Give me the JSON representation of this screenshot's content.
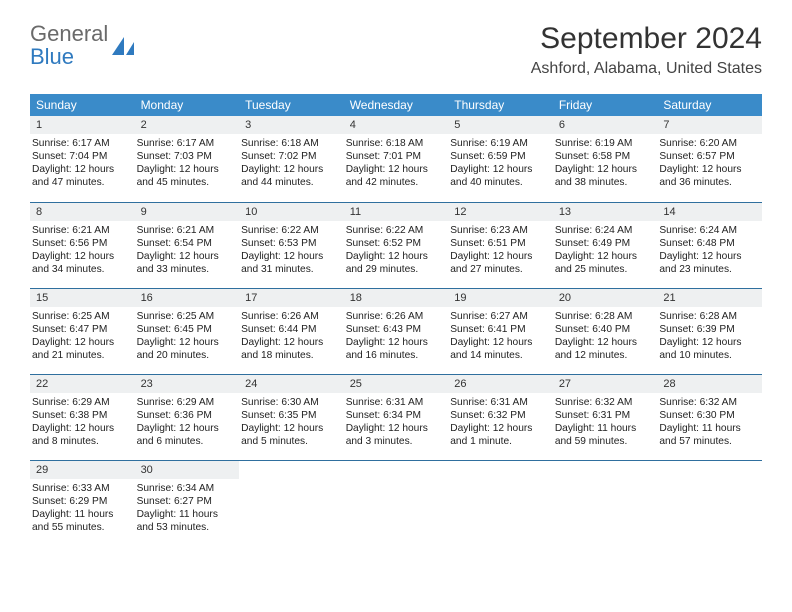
{
  "header": {
    "logo_word1": "General",
    "logo_word2": "Blue",
    "title_month": "September 2024",
    "location": "Ashford, Alabama, United States"
  },
  "colors": {
    "header_bg": "#3a8bc9",
    "header_text": "#ffffff",
    "daynum_bg": "#eef0f1",
    "row_border": "#2f6f9e",
    "logo_blue": "#2f7abf",
    "title_text": "#333333",
    "body_text": "#222222"
  },
  "columns": [
    "Sunday",
    "Monday",
    "Tuesday",
    "Wednesday",
    "Thursday",
    "Friday",
    "Saturday"
  ],
  "weeks": [
    [
      {
        "day": "1",
        "sunrise": "6:17 AM",
        "sunset": "7:04 PM",
        "daylight": "12 hours and 47 minutes."
      },
      {
        "day": "2",
        "sunrise": "6:17 AM",
        "sunset": "7:03 PM",
        "daylight": "12 hours and 45 minutes."
      },
      {
        "day": "3",
        "sunrise": "6:18 AM",
        "sunset": "7:02 PM",
        "daylight": "12 hours and 44 minutes."
      },
      {
        "day": "4",
        "sunrise": "6:18 AM",
        "sunset": "7:01 PM",
        "daylight": "12 hours and 42 minutes."
      },
      {
        "day": "5",
        "sunrise": "6:19 AM",
        "sunset": "6:59 PM",
        "daylight": "12 hours and 40 minutes."
      },
      {
        "day": "6",
        "sunrise": "6:19 AM",
        "sunset": "6:58 PM",
        "daylight": "12 hours and 38 minutes."
      },
      {
        "day": "7",
        "sunrise": "6:20 AM",
        "sunset": "6:57 PM",
        "daylight": "12 hours and 36 minutes."
      }
    ],
    [
      {
        "day": "8",
        "sunrise": "6:21 AM",
        "sunset": "6:56 PM",
        "daylight": "12 hours and 34 minutes."
      },
      {
        "day": "9",
        "sunrise": "6:21 AM",
        "sunset": "6:54 PM",
        "daylight": "12 hours and 33 minutes."
      },
      {
        "day": "10",
        "sunrise": "6:22 AM",
        "sunset": "6:53 PM",
        "daylight": "12 hours and 31 minutes."
      },
      {
        "day": "11",
        "sunrise": "6:22 AM",
        "sunset": "6:52 PM",
        "daylight": "12 hours and 29 minutes."
      },
      {
        "day": "12",
        "sunrise": "6:23 AM",
        "sunset": "6:51 PM",
        "daylight": "12 hours and 27 minutes."
      },
      {
        "day": "13",
        "sunrise": "6:24 AM",
        "sunset": "6:49 PM",
        "daylight": "12 hours and 25 minutes."
      },
      {
        "day": "14",
        "sunrise": "6:24 AM",
        "sunset": "6:48 PM",
        "daylight": "12 hours and 23 minutes."
      }
    ],
    [
      {
        "day": "15",
        "sunrise": "6:25 AM",
        "sunset": "6:47 PM",
        "daylight": "12 hours and 21 minutes."
      },
      {
        "day": "16",
        "sunrise": "6:25 AM",
        "sunset": "6:45 PM",
        "daylight": "12 hours and 20 minutes."
      },
      {
        "day": "17",
        "sunrise": "6:26 AM",
        "sunset": "6:44 PM",
        "daylight": "12 hours and 18 minutes."
      },
      {
        "day": "18",
        "sunrise": "6:26 AM",
        "sunset": "6:43 PM",
        "daylight": "12 hours and 16 minutes."
      },
      {
        "day": "19",
        "sunrise": "6:27 AM",
        "sunset": "6:41 PM",
        "daylight": "12 hours and 14 minutes."
      },
      {
        "day": "20",
        "sunrise": "6:28 AM",
        "sunset": "6:40 PM",
        "daylight": "12 hours and 12 minutes."
      },
      {
        "day": "21",
        "sunrise": "6:28 AM",
        "sunset": "6:39 PM",
        "daylight": "12 hours and 10 minutes."
      }
    ],
    [
      {
        "day": "22",
        "sunrise": "6:29 AM",
        "sunset": "6:38 PM",
        "daylight": "12 hours and 8 minutes."
      },
      {
        "day": "23",
        "sunrise": "6:29 AM",
        "sunset": "6:36 PM",
        "daylight": "12 hours and 6 minutes."
      },
      {
        "day": "24",
        "sunrise": "6:30 AM",
        "sunset": "6:35 PM",
        "daylight": "12 hours and 5 minutes."
      },
      {
        "day": "25",
        "sunrise": "6:31 AM",
        "sunset": "6:34 PM",
        "daylight": "12 hours and 3 minutes."
      },
      {
        "day": "26",
        "sunrise": "6:31 AM",
        "sunset": "6:32 PM",
        "daylight": "12 hours and 1 minute."
      },
      {
        "day": "27",
        "sunrise": "6:32 AM",
        "sunset": "6:31 PM",
        "daylight": "11 hours and 59 minutes."
      },
      {
        "day": "28",
        "sunrise": "6:32 AM",
        "sunset": "6:30 PM",
        "daylight": "11 hours and 57 minutes."
      }
    ],
    [
      {
        "day": "29",
        "sunrise": "6:33 AM",
        "sunset": "6:29 PM",
        "daylight": "11 hours and 55 minutes."
      },
      {
        "day": "30",
        "sunrise": "6:34 AM",
        "sunset": "6:27 PM",
        "daylight": "11 hours and 53 minutes."
      },
      null,
      null,
      null,
      null,
      null
    ]
  ],
  "labels": {
    "sunrise": "Sunrise:",
    "sunset": "Sunset:",
    "daylight": "Daylight:"
  }
}
